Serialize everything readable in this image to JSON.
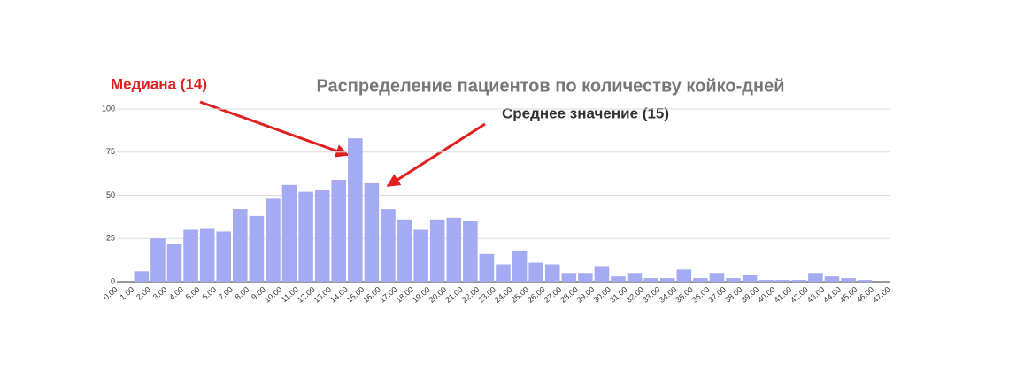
{
  "chart_data": {
    "type": "histogram",
    "title": "Распределение пациентов по количеству койко-дней",
    "annotations": [
      "Медиана (14)",
      "Среднее значение (15)"
    ],
    "bins": [
      {
        "value": 0,
        "label": "0.00"
      },
      {
        "value": 1,
        "label": "1.00"
      },
      {
        "value": 2,
        "label": "2.00"
      },
      {
        "value": 3,
        "label": "3.00"
      },
      {
        "value": 4,
        "label": "4.00"
      },
      {
        "value": 5,
        "label": "5.00"
      },
      {
        "value": 6,
        "label": "6.00"
      },
      {
        "value": 7,
        "label": "7.00"
      },
      {
        "value": 8,
        "label": "8.00"
      },
      {
        "value": 9,
        "label": "9.00"
      },
      {
        "value": 10,
        "label": "10.00"
      },
      {
        "value": 11,
        "label": "11.00"
      },
      {
        "value": 12,
        "label": "12.00"
      },
      {
        "value": 13,
        "label": "13.00"
      },
      {
        "value": 14,
        "label": "14.00"
      },
      {
        "value": 15,
        "label": "15.00"
      },
      {
        "value": 16,
        "label": "16.00"
      },
      {
        "value": 17,
        "label": "17.00"
      },
      {
        "value": 18,
        "label": "18.00"
      },
      {
        "value": 19,
        "label": "19.00"
      },
      {
        "value": 20,
        "label": "20.00"
      },
      {
        "value": 21,
        "label": "21.00"
      },
      {
        "value": 22,
        "label": "22.00"
      },
      {
        "value": 23,
        "label": "23.00"
      },
      {
        "value": 24,
        "label": "24.00"
      },
      {
        "value": 25,
        "label": "25.00"
      },
      {
        "value": 26,
        "label": "26.00"
      },
      {
        "value": 27,
        "label": "27.00"
      },
      {
        "value": 28,
        "label": "28.00"
      },
      {
        "value": 29,
        "label": "29.00"
      },
      {
        "value": 30,
        "label": "30.00"
      },
      {
        "value": 31,
        "label": "31.00"
      },
      {
        "value": 32,
        "label": "32.00"
      },
      {
        "value": 33,
        "label": "33.00"
      },
      {
        "value": 34,
        "label": "34.00"
      },
      {
        "value": 35,
        "label": "35.00"
      },
      {
        "value": 36,
        "label": "36.00"
      },
      {
        "value": 37,
        "label": "37.00"
      },
      {
        "value": 38,
        "label": "38.00"
      },
      {
        "value": 39,
        "label": "39.00"
      },
      {
        "value": 40,
        "label": "40.00"
      },
      {
        "value": 41,
        "label": "41.00"
      },
      {
        "value": 42,
        "label": "42.00"
      },
      {
        "value": 43,
        "label": "43.00"
      },
      {
        "value": 44,
        "label": "44.00"
      },
      {
        "value": 45,
        "label": "45.00"
      },
      {
        "value": 46,
        "label": "46.00"
      },
      {
        "value": 47,
        "label": "47.00"
      }
    ],
    "counts": [
      0,
      6,
      25,
      22,
      30,
      31,
      29,
      42,
      38,
      48,
      56,
      52,
      53,
      59,
      83,
      57,
      42,
      36,
      30,
      36,
      37,
      35,
      16,
      10,
      18,
      11,
      10,
      5,
      5,
      9,
      3,
      5,
      2,
      2,
      7,
      2,
      5,
      2,
      4,
      1,
      1,
      1,
      5,
      3,
      2,
      1,
      0
    ],
    "color": "#a4abf3",
    "xlim": [
      0,
      47
    ],
    "ylim": [
      0,
      100
    ],
    "yticks": [
      0,
      25,
      50,
      75,
      100
    ],
    "grid": true
  }
}
